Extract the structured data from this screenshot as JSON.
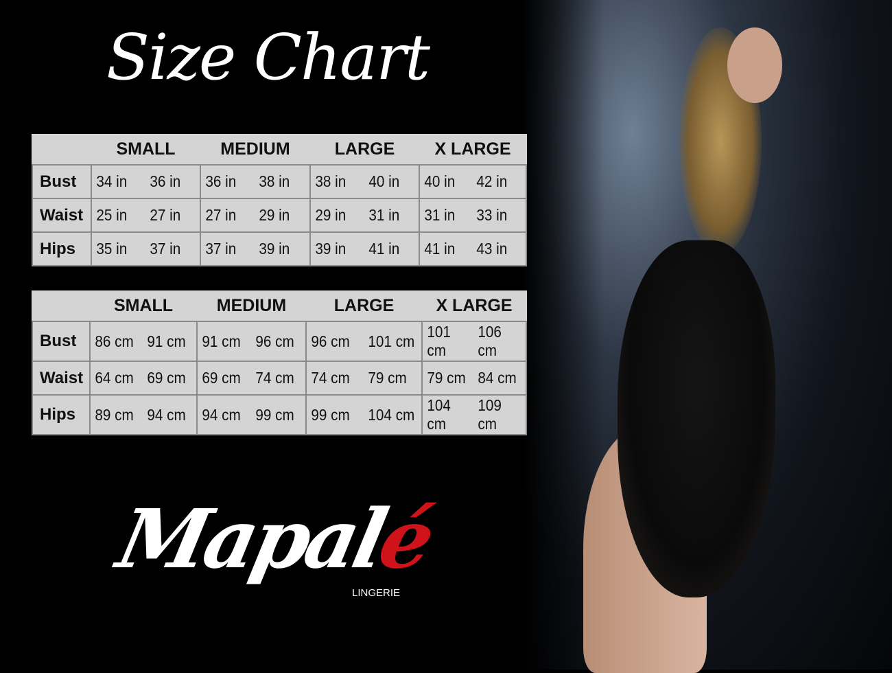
{
  "title": "Size Chart",
  "brand": {
    "name_main": "Mapal",
    "name_accent": "é",
    "subtitle": "LINGERIE",
    "accent_color": "#d0121b"
  },
  "tables": [
    {
      "sizes": [
        "SMALL",
        "MEDIUM",
        "LARGE",
        "X LARGE"
      ],
      "rows": [
        {
          "label": "Bust",
          "values": [
            "34 in",
            "36 in",
            "36 in",
            "38 in",
            "38 in",
            "40 in",
            "40 in",
            "42 in"
          ]
        },
        {
          "label": "Waist",
          "values": [
            "25 in",
            "27 in",
            "27 in",
            "29 in",
            "29 in",
            "31 in",
            "31 in",
            "33 in"
          ]
        },
        {
          "label": "Hips",
          "values": [
            "35 in",
            "37 in",
            "37 in",
            "39 in",
            "39 in",
            "41 in",
            "41 in",
            "43 in"
          ]
        }
      ]
    },
    {
      "sizes": [
        "SMALL",
        "MEDIUM",
        "LARGE",
        "X LARGE"
      ],
      "rows": [
        {
          "label": "Bust",
          "values": [
            "86 cm",
            "91 cm",
            "91 cm",
            "96 cm",
            "96 cm",
            "101 cm",
            "101 cm",
            "106 cm"
          ]
        },
        {
          "label": "Waist",
          "values": [
            "64 cm",
            "69 cm",
            "69 cm",
            "74 cm",
            "74 cm",
            "79 cm",
            "79 cm",
            "84 cm"
          ]
        },
        {
          "label": "Hips",
          "values": [
            "89 cm",
            "94 cm",
            "94 cm",
            "99 cm",
            "99 cm",
            "104 cm",
            "104 cm",
            "109 cm"
          ]
        }
      ]
    }
  ]
}
